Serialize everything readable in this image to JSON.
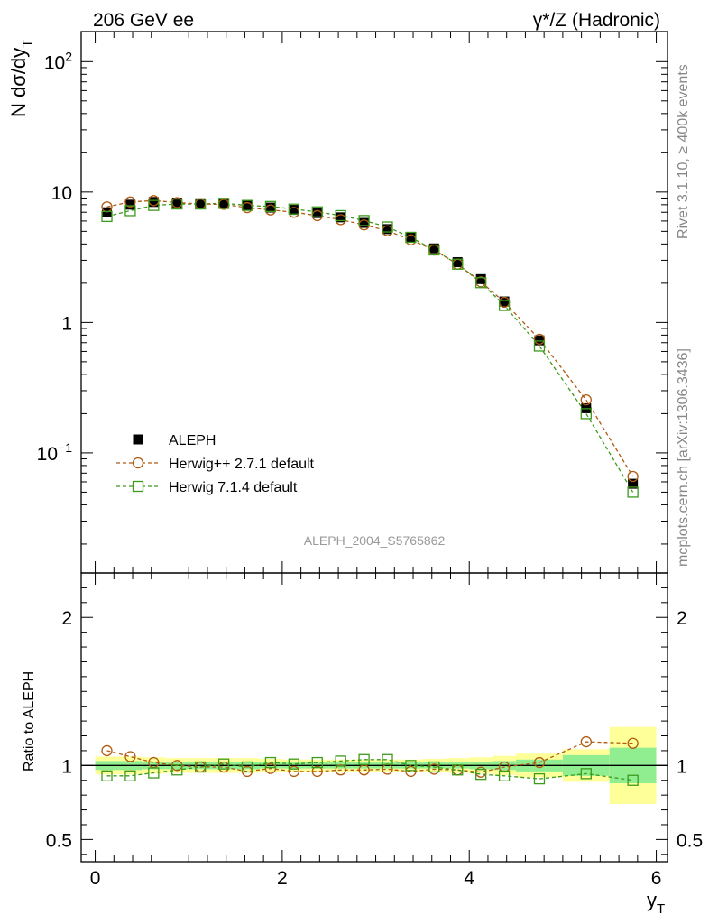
{
  "header": {
    "left": "206 GeV ee",
    "right": "γ*/Z (Hadronic)"
  },
  "side": {
    "rivet": "Rivet 3.1.10, ≥ 400k events",
    "mcplots": "mcplots.cern.ch [arXiv:1306.3436]"
  },
  "analysis_id": "ALEPH_2004_S5765862",
  "chart_data": [
    {
      "type": "scatter",
      "role": "main",
      "ylabel": "N dσ/dy",
      "ylabel_sub": "T",
      "yscale": "log",
      "xlim": [
        -0.15,
        6.12
      ],
      "ylim": [
        0.012,
        170
      ],
      "yticks": [
        {
          "value": 100,
          "base": "10",
          "exp": "2"
        },
        {
          "value": 10,
          "label": "10"
        },
        {
          "value": 1,
          "label": "1"
        },
        {
          "value": 0.1,
          "base": "10",
          "exp": "−1"
        }
      ],
      "x": [
        0.125,
        0.375,
        0.625,
        0.875,
        1.125,
        1.375,
        1.625,
        1.875,
        2.125,
        2.375,
        2.625,
        2.875,
        3.125,
        3.375,
        3.625,
        3.875,
        4.125,
        4.375,
        4.75,
        5.25,
        5.75
      ],
      "series": [
        {
          "name": "ALEPH",
          "marker": "filled-square",
          "color": "#000000",
          "values": [
            7.0,
            8.0,
            8.4,
            8.3,
            8.2,
            8.1,
            7.9,
            7.6,
            7.3,
            6.9,
            6.4,
            5.8,
            5.2,
            4.5,
            3.7,
            2.9,
            2.15,
            1.45,
            0.73,
            0.22,
            0.058
          ]
        },
        {
          "name": "Herwig++ 2.7.1 default",
          "marker": "open-circle",
          "color": "#b05a10",
          "values": [
            7.7,
            8.4,
            8.6,
            8.3,
            8.1,
            8.05,
            7.6,
            7.3,
            7.0,
            6.6,
            6.15,
            5.6,
            5.05,
            4.3,
            3.6,
            2.8,
            2.05,
            1.43,
            0.745,
            0.255,
            0.066
          ]
        },
        {
          "name": "Herwig 7.1.4 default",
          "marker": "open-square",
          "color": "#3c9a1c",
          "values": [
            6.5,
            7.2,
            7.9,
            8.1,
            8.1,
            8.2,
            7.9,
            7.75,
            7.4,
            7.05,
            6.6,
            6.05,
            5.4,
            4.5,
            3.6,
            2.8,
            2.02,
            1.35,
            0.66,
            0.2,
            0.05
          ]
        }
      ]
    },
    {
      "type": "scatter",
      "role": "ratio",
      "xlabel": "y",
      "xlabel_sub": "T",
      "ylabel": "Ratio to ALEPH",
      "xlim": [
        -0.15,
        6.12
      ],
      "ylim": [
        0.35,
        2.3
      ],
      "xticks": [
        {
          "value": 0,
          "label": "0"
        },
        {
          "value": 2,
          "label": "2"
        },
        {
          "value": 4,
          "label": "4"
        },
        {
          "value": 6,
          "label": "6"
        }
      ],
      "yticks": [
        {
          "value": 2,
          "label": "2"
        },
        {
          "value": 1,
          "label": "1"
        },
        {
          "value": 0.5,
          "label": "0.5"
        }
      ],
      "x": [
        0.125,
        0.375,
        0.625,
        0.875,
        1.125,
        1.375,
        1.625,
        1.875,
        2.125,
        2.375,
        2.625,
        2.875,
        3.125,
        3.375,
        3.625,
        3.875,
        4.125,
        4.375,
        4.75,
        5.25,
        5.75
      ],
      "bins": [
        [
          0,
          0.25
        ],
        [
          0.25,
          0.5
        ],
        [
          0.5,
          0.75
        ],
        [
          0.75,
          1.0
        ],
        [
          1.0,
          1.25
        ],
        [
          1.25,
          1.5
        ],
        [
          1.5,
          1.75
        ],
        [
          1.75,
          2.0
        ],
        [
          2.0,
          2.25
        ],
        [
          2.25,
          2.5
        ],
        [
          2.5,
          2.75
        ],
        [
          2.75,
          3.0
        ],
        [
          3.0,
          3.25
        ],
        [
          3.25,
          3.5
        ],
        [
          3.5,
          3.75
        ],
        [
          3.75,
          4.0
        ],
        [
          4.0,
          4.25
        ],
        [
          4.25,
          4.5
        ],
        [
          4.5,
          5.0
        ],
        [
          5.0,
          5.5
        ],
        [
          5.5,
          6.0
        ]
      ],
      "band_stat": [
        0.03,
        0.03,
        0.025,
        0.025,
        0.025,
        0.025,
        0.025,
        0.02,
        0.02,
        0.02,
        0.02,
        0.02,
        0.02,
        0.02,
        0.02,
        0.02,
        0.025,
        0.03,
        0.04,
        0.07,
        0.12
      ],
      "band_total": [
        0.06,
        0.06,
        0.055,
        0.05,
        0.05,
        0.05,
        0.05,
        0.045,
        0.04,
        0.04,
        0.04,
        0.04,
        0.04,
        0.04,
        0.045,
        0.05,
        0.055,
        0.065,
        0.08,
        0.11,
        0.26
      ],
      "band_colors": {
        "total": "#ffff99",
        "stat": "#90ee90"
      },
      "series": [
        {
          "name": "Herwig++ 2.7.1 default",
          "marker": "open-circle",
          "color": "#b05a10",
          "values": [
            1.1,
            1.06,
            1.02,
            1.0,
            0.99,
            0.99,
            0.96,
            0.98,
            0.96,
            0.96,
            0.97,
            0.97,
            0.975,
            0.96,
            0.975,
            0.97,
            0.955,
            0.99,
            1.02,
            1.16,
            1.15
          ]
        },
        {
          "name": "Herwig 7.1.4 default",
          "marker": "open-square",
          "color": "#3c9a1c",
          "values": [
            0.93,
            0.93,
            0.95,
            0.97,
            0.99,
            1.01,
            0.99,
            1.02,
            1.01,
            1.02,
            1.03,
            1.04,
            1.04,
            1.0,
            0.99,
            0.97,
            0.94,
            0.93,
            0.91,
            0.945,
            0.9
          ]
        }
      ]
    }
  ]
}
